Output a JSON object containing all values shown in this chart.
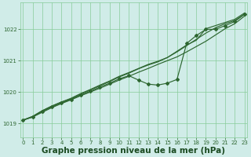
{
  "background_color": "#d0ece8",
  "plot_bg_color": "#d0ece8",
  "grid_color": "#88cc99",
  "line_color": "#2d6630",
  "marker_color": "#2d6630",
  "xlabel": "Graphe pression niveau de la mer (hPa)",
  "xlabel_fontsize": 7.5,
  "xlabel_color": "#1a4a20",
  "ylim": [
    1018.55,
    1022.85
  ],
  "xlim": [
    -0.3,
    23.3
  ],
  "yticks": [
    1019,
    1020,
    1021,
    1022
  ],
  "xticks": [
    0,
    1,
    2,
    3,
    4,
    5,
    6,
    7,
    8,
    9,
    10,
    11,
    12,
    13,
    14,
    15,
    16,
    17,
    18,
    19,
    20,
    21,
    22,
    23
  ],
  "smooth_lines": [
    [
      1019.1,
      1019.2,
      1019.35,
      1019.5,
      1019.63,
      1019.75,
      1019.88,
      1020.0,
      1020.12,
      1020.25,
      1020.38,
      1020.5,
      1020.63,
      1020.75,
      1020.88,
      1021.0,
      1021.12,
      1021.28,
      1021.45,
      1021.62,
      1021.82,
      1022.02,
      1022.18,
      1022.42
    ],
    [
      1019.1,
      1019.22,
      1019.4,
      1019.55,
      1019.68,
      1019.8,
      1019.95,
      1020.08,
      1020.22,
      1020.35,
      1020.5,
      1020.62,
      1020.75,
      1020.88,
      1020.98,
      1021.1,
      1021.28,
      1021.48,
      1021.68,
      1021.88,
      1022.05,
      1022.18,
      1022.28,
      1022.48
    ],
    [
      1019.1,
      1019.22,
      1019.4,
      1019.55,
      1019.68,
      1019.78,
      1019.93,
      1020.06,
      1020.2,
      1020.33,
      1020.48,
      1020.6,
      1020.74,
      1020.86,
      1020.96,
      1021.1,
      1021.3,
      1021.5,
      1021.65,
      1022.02,
      1022.12,
      1022.22,
      1022.32,
      1022.52
    ]
  ],
  "marker_line_x": [
    0,
    1,
    2,
    3,
    4,
    5,
    6,
    7,
    8,
    9,
    10,
    11,
    12,
    13,
    14,
    15,
    16,
    17,
    18,
    19,
    20,
    21,
    22,
    23
  ],
  "marker_line_y": [
    1019.1,
    1019.2,
    1019.38,
    1019.52,
    1019.65,
    1019.76,
    1019.9,
    1020.02,
    1020.16,
    1020.28,
    1020.42,
    1020.52,
    1020.38,
    1020.25,
    1020.22,
    1020.28,
    1020.4,
    1021.55,
    1021.8,
    1022.0,
    1022.0,
    1022.12,
    1022.25,
    1022.48
  ]
}
